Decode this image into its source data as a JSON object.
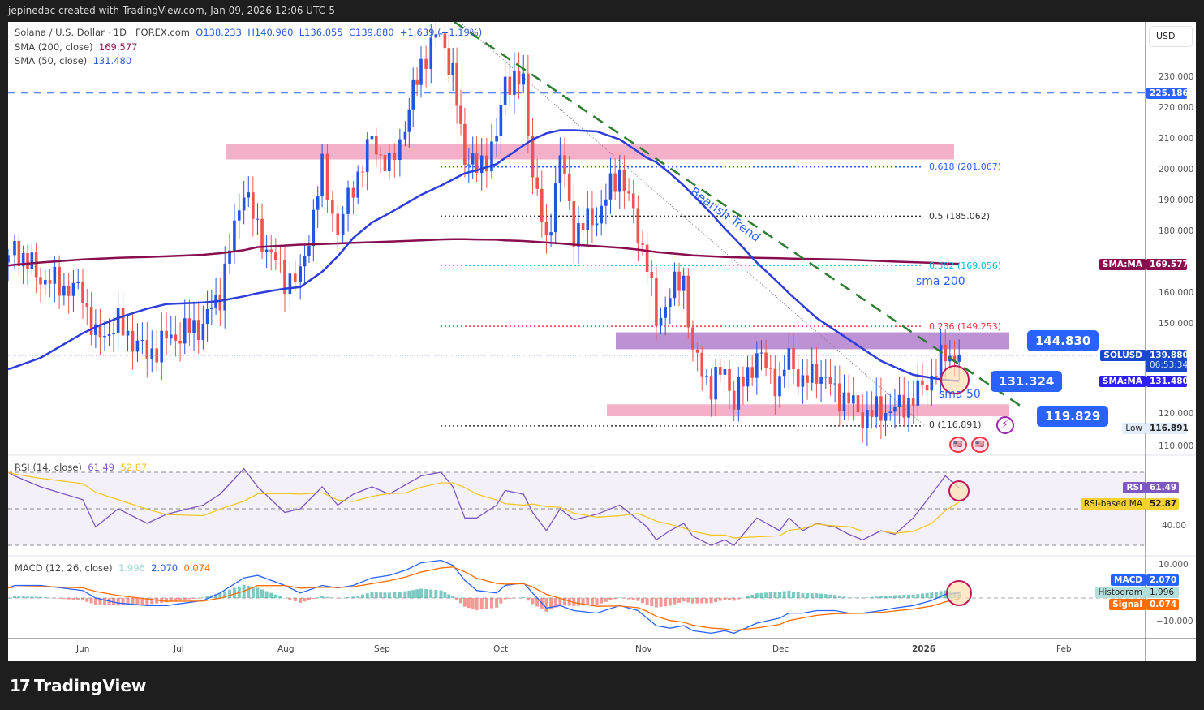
{
  "header": {
    "credit": "jepinedac created with TradingView.com, Jan 09, 2026 12:06 UTC-5"
  },
  "legend": {
    "symbol": "Solana / U.S. Dollar · 1D · FOREX.com",
    "o": "O138.233",
    "h": "H140.960",
    "l": "L136.055",
    "c": "C139.880",
    "chg": "+1.639 (+1.19%)",
    "sma200_label": "SMA (200, close)",
    "sma200_value": "169.577",
    "sma50_label": "SMA (50, close)",
    "sma50_value": "131.480",
    "rsi_label": "RSI (14, close)",
    "rsi_value": "61.49",
    "rsi_ma_value": "52.87",
    "macd_label": "MACD (12, 26, close)",
    "hist_value": "1.996",
    "macd_value": "2.070",
    "signal_value": "0.074"
  },
  "axis": {
    "currency": "USD",
    "price_ticks": [
      "230.000",
      "220.000",
      "210.000",
      "200.000",
      "190.000",
      "180.000",
      "160.000",
      "150.000",
      "120.000",
      "110.000"
    ],
    "rsi_ticks": [
      "40.00"
    ],
    "macd_ticks": [
      "10.000",
      "−10.000"
    ],
    "dates": [
      "Jun",
      "Jul",
      "Aug",
      "Sep",
      "Oct",
      "Nov",
      "Dec",
      "2026",
      "Feb"
    ]
  },
  "tags": {
    "hline": "225.186",
    "sma200_name": "SMA:MA",
    "sma200": "169.577",
    "sym": "SOLUSD",
    "price": "139.880",
    "countdown": "06:53:34",
    "sma50_name": "SMA:MA",
    "sma50": "131.480",
    "low_name": "Low",
    "low": "116.891",
    "rsi_name": "RSI",
    "rsi": "61.49",
    "rsima_name": "RSI-based MA",
    "rsima": "52.87",
    "macd_name": "MACD",
    "macd": "2.070",
    "hist_name": "Histogram",
    "hist": "1.996",
    "signal_name": "Signal",
    "signal": "0.074"
  },
  "annotations": {
    "trend_text": "Bearish Trend",
    "sma200_text": "sma 200",
    "sma50_text": "sma 50",
    "box1": "144.830",
    "box2": "131.324",
    "box3": "119.829",
    "fib": [
      {
        "label": "0.618 (201.067)",
        "value": 201.067,
        "color": "#2962ff"
      },
      {
        "label": "0.5 (185.062)",
        "value": 185.062,
        "color": "#333333"
      },
      {
        "label": "0.382 (169.056)",
        "value": 169.056,
        "color": "#00bcd4"
      },
      {
        "label": "0.236 (149.253)",
        "value": 149.253,
        "color": "#f23645"
      },
      {
        "label": "0 (116.891)",
        "value": 116.891,
        "color": "#333333"
      }
    ],
    "zones": [
      {
        "from": 203.5,
        "to": 208.5,
        "color": "#f4a7c3"
      },
      {
        "from": 141.8,
        "to": 147.3,
        "color": "#b784cf"
      },
      {
        "from": 120.0,
        "to": 123.9,
        "color": "#f4a7c3"
      }
    ]
  },
  "brand": {
    "logo_text": "TradingView"
  },
  "chart_data": {
    "type": "candlestick",
    "title": "Solana / U.S. Dollar · 1D · FOREX.com",
    "ylim": [
      107,
      247
    ],
    "rsi_ylim": [
      20,
      80
    ],
    "macd_ylim": [
      -16,
      17
    ],
    "colors": {
      "up": "#2455e0",
      "down": "#ef5350",
      "sma200": "#880e4f",
      "sma50": "#2d3ddb",
      "rsi": "#7e57c2",
      "rsi_ma": "#f5c518",
      "macd": "#2962ff",
      "signal": "#ff6d00"
    },
    "series": [
      {
        "d": "2025-05-09",
        "c": 170,
        "sma200": 169,
        "sma50": 135.3,
        "rsi": 70,
        "macd": 4
      },
      {
        "d": "2025-05-11",
        "c": 175,
        "sma200": 169.3,
        "sma50": 136,
        "rsi": 68,
        "macd": 5
      },
      {
        "d": "2025-05-19",
        "c": 165,
        "sma200": 170,
        "sma50": 139,
        "rsi": 62,
        "macd": 5
      },
      {
        "d": "2025-06-01",
        "c": 160,
        "sma200": 171,
        "sma50": 147,
        "rsi": 55,
        "macd": 3
      },
      {
        "d": "2025-06-05",
        "c": 145,
        "sma200": 171.2,
        "sma50": 149,
        "rsi": 40,
        "macd": 0
      },
      {
        "d": "2025-06-12",
        "c": 150,
        "sma200": 171.5,
        "sma50": 152,
        "rsi": 50,
        "macd": -2
      },
      {
        "d": "2025-06-21",
        "c": 140,
        "sma200": 171.8,
        "sma50": 155,
        "rsi": 42,
        "macd": -3
      },
      {
        "d": "2025-06-27",
        "c": 145,
        "sma200": 172,
        "sma50": 156.5,
        "rsi": 47,
        "macd": -3
      },
      {
        "d": "2025-07-08",
        "c": 150,
        "sma200": 172.5,
        "sma50": 157,
        "rsi": 52,
        "macd": -1
      },
      {
        "d": "2025-07-13",
        "c": 160,
        "sma200": 173,
        "sma50": 157.5,
        "rsi": 58,
        "macd": 2
      },
      {
        "d": "2025-07-20",
        "c": 195,
        "sma200": 174,
        "sma50": 159,
        "rsi": 72,
        "macd": 8
      },
      {
        "d": "2025-07-24",
        "c": 180,
        "sma200": 175,
        "sma50": 160,
        "rsi": 62,
        "macd": 9
      },
      {
        "d": "2025-08-01",
        "c": 165,
        "sma200": 175.5,
        "sma50": 161.5,
        "rsi": 48,
        "macd": 5
      },
      {
        "d": "2025-08-06",
        "c": 165,
        "sma200": 175.8,
        "sma50": 162,
        "rsi": 50,
        "macd": 2
      },
      {
        "d": "2025-08-13",
        "c": 200,
        "sma200": 176,
        "sma50": 167,
        "rsi": 62,
        "macd": 5
      },
      {
        "d": "2025-08-18",
        "c": 180,
        "sma200": 176.2,
        "sma50": 172,
        "rsi": 52,
        "macd": 4
      },
      {
        "d": "2025-08-23",
        "c": 195,
        "sma200": 176.4,
        "sma50": 178,
        "rsi": 58,
        "macd": 5
      },
      {
        "d": "2025-08-29",
        "c": 210,
        "sma200": 176.6,
        "sma50": 183,
        "rsi": 62,
        "macd": 8
      },
      {
        "d": "2025-09-03",
        "c": 200,
        "sma200": 176.8,
        "sma50": 186,
        "rsi": 58,
        "macd": 9
      },
      {
        "d": "2025-09-07",
        "c": 215,
        "sma200": 177,
        "sma50": 189,
        "rsi": 63,
        "macd": 11
      },
      {
        "d": "2025-09-11",
        "c": 235,
        "sma200": 177.2,
        "sma50": 192,
        "rsi": 68,
        "macd": 14
      },
      {
        "d": "2025-09-16",
        "c": 245,
        "sma200": 177.5,
        "sma50": 195,
        "rsi": 70,
        "macd": 15
      },
      {
        "d": "2025-09-19",
        "c": 230,
        "sma200": 177.6,
        "sma50": 197,
        "rsi": 62,
        "macd": 13
      },
      {
        "d": "2025-09-22",
        "c": 205,
        "sma200": 177.6,
        "sma50": 199,
        "rsi": 45,
        "macd": 7
      },
      {
        "d": "2025-09-25",
        "c": 200,
        "sma200": 177.5,
        "sma50": 200,
        "rsi": 45,
        "macd": 3
      },
      {
        "d": "2025-09-30",
        "c": 210,
        "sma200": 177.4,
        "sma50": 202,
        "rsi": 52,
        "macd": 2
      },
      {
        "d": "2025-10-02",
        "c": 230,
        "sma200": 177.2,
        "sma50": 204,
        "rsi": 60,
        "macd": 5
      },
      {
        "d": "2025-10-06",
        "c": 228,
        "sma200": 177,
        "sma50": 208,
        "rsi": 58,
        "macd": 6
      },
      {
        "d": "2025-10-08",
        "c": 200,
        "sma200": 176.8,
        "sma50": 210,
        "rsi": 48,
        "macd": 2
      },
      {
        "d": "2025-10-11",
        "c": 175,
        "sma200": 176.5,
        "sma50": 212,
        "rsi": 38,
        "macd": -4
      },
      {
        "d": "2025-10-14",
        "c": 205,
        "sma200": 176.2,
        "sma50": 213,
        "rsi": 50,
        "macd": -3
      },
      {
        "d": "2025-10-17",
        "c": 180,
        "sma200": 175.8,
        "sma50": 213,
        "rsi": 44,
        "macd": -5
      },
      {
        "d": "2025-10-22",
        "c": 185,
        "sma200": 175.3,
        "sma50": 212.6,
        "rsi": 47,
        "macd": -6
      },
      {
        "d": "2025-10-27",
        "c": 200,
        "sma200": 174.8,
        "sma50": 210,
        "rsi": 52,
        "macd": -3
      },
      {
        "d": "2025-10-31",
        "c": 180,
        "sma200": 174.2,
        "sma50": 206,
        "rsi": 44,
        "macd": -5
      },
      {
        "d": "2025-11-02",
        "c": 170,
        "sma200": 173.8,
        "sma50": 204,
        "rsi": 40,
        "macd": -8
      },
      {
        "d": "2025-11-04",
        "c": 150,
        "sma200": 173.4,
        "sma50": 202.6,
        "rsi": 33,
        "macd": -11
      },
      {
        "d": "2025-11-07",
        "c": 160,
        "sma200": 173,
        "sma50": 199,
        "rsi": 38,
        "macd": -12
      },
      {
        "d": "2025-11-10",
        "c": 165,
        "sma200": 172.6,
        "sma50": 195,
        "rsi": 42,
        "macd": -11
      },
      {
        "d": "2025-11-12",
        "c": 140,
        "sma200": 172.3,
        "sma50": 192,
        "rsi": 35,
        "macd": -13
      },
      {
        "d": "2025-11-16",
        "c": 130,
        "sma200": 172,
        "sma50": 186,
        "rsi": 30,
        "macd": -14
      },
      {
        "d": "2025-11-19",
        "c": 135,
        "sma200": 171.8,
        "sma50": 181,
        "rsi": 33,
        "macd": -13
      },
      {
        "d": "2025-11-21",
        "c": 125,
        "sma200": 171.7,
        "sma50": 178,
        "rsi": 30,
        "macd": -14
      },
      {
        "d": "2025-11-26",
        "c": 140,
        "sma200": 171.5,
        "sma50": 170,
        "rsi": 45,
        "macd": -10
      },
      {
        "d": "2025-12-01",
        "c": 130,
        "sma200": 171.4,
        "sma50": 163,
        "rsi": 38,
        "macd": -8
      },
      {
        "d": "2025-12-03",
        "c": 140,
        "sma200": 171.3,
        "sma50": 160,
        "rsi": 45,
        "macd": -6
      },
      {
        "d": "2025-12-06",
        "c": 130,
        "sma200": 171.2,
        "sma50": 156,
        "rsi": 38,
        "macd": -6
      },
      {
        "d": "2025-12-09",
        "c": 135,
        "sma200": 171.1,
        "sma50": 152,
        "rsi": 42,
        "macd": -5
      },
      {
        "d": "2025-12-13",
        "c": 128,
        "sma200": 171,
        "sma50": 148,
        "rsi": 40,
        "macd": -5
      },
      {
        "d": "2025-12-16",
        "c": 125,
        "sma200": 170.9,
        "sma50": 145,
        "rsi": 36,
        "macd": -6
      },
      {
        "d": "2025-12-19",
        "c": 120,
        "sma200": 170.7,
        "sma50": 142,
        "rsi": 33,
        "macd": -6
      },
      {
        "d": "2025-12-23",
        "c": 122,
        "sma200": 170.5,
        "sma50": 138,
        "rsi": 38,
        "macd": -5
      },
      {
        "d": "2025-12-26",
        "c": 122,
        "sma200": 170.3,
        "sma50": 136,
        "rsi": 36,
        "macd": -4
      },
      {
        "d": "2025-12-30",
        "c": 126,
        "sma200": 170.1,
        "sma50": 133.5,
        "rsi": 45,
        "macd": -3
      },
      {
        "d": "2026-01-03",
        "c": 133,
        "sma200": 169.9,
        "sma50": 132.5,
        "rsi": 58,
        "macd": -1
      },
      {
        "d": "2026-01-06",
        "c": 140,
        "sma200": 169.7,
        "sma50": 131.8,
        "rsi": 68,
        "macd": 1.5
      },
      {
        "d": "2026-01-09",
        "c": 139.88,
        "sma200": 169.577,
        "sma50": 131.48,
        "rsi": 61.49,
        "macd": 2.07
      }
    ]
  }
}
